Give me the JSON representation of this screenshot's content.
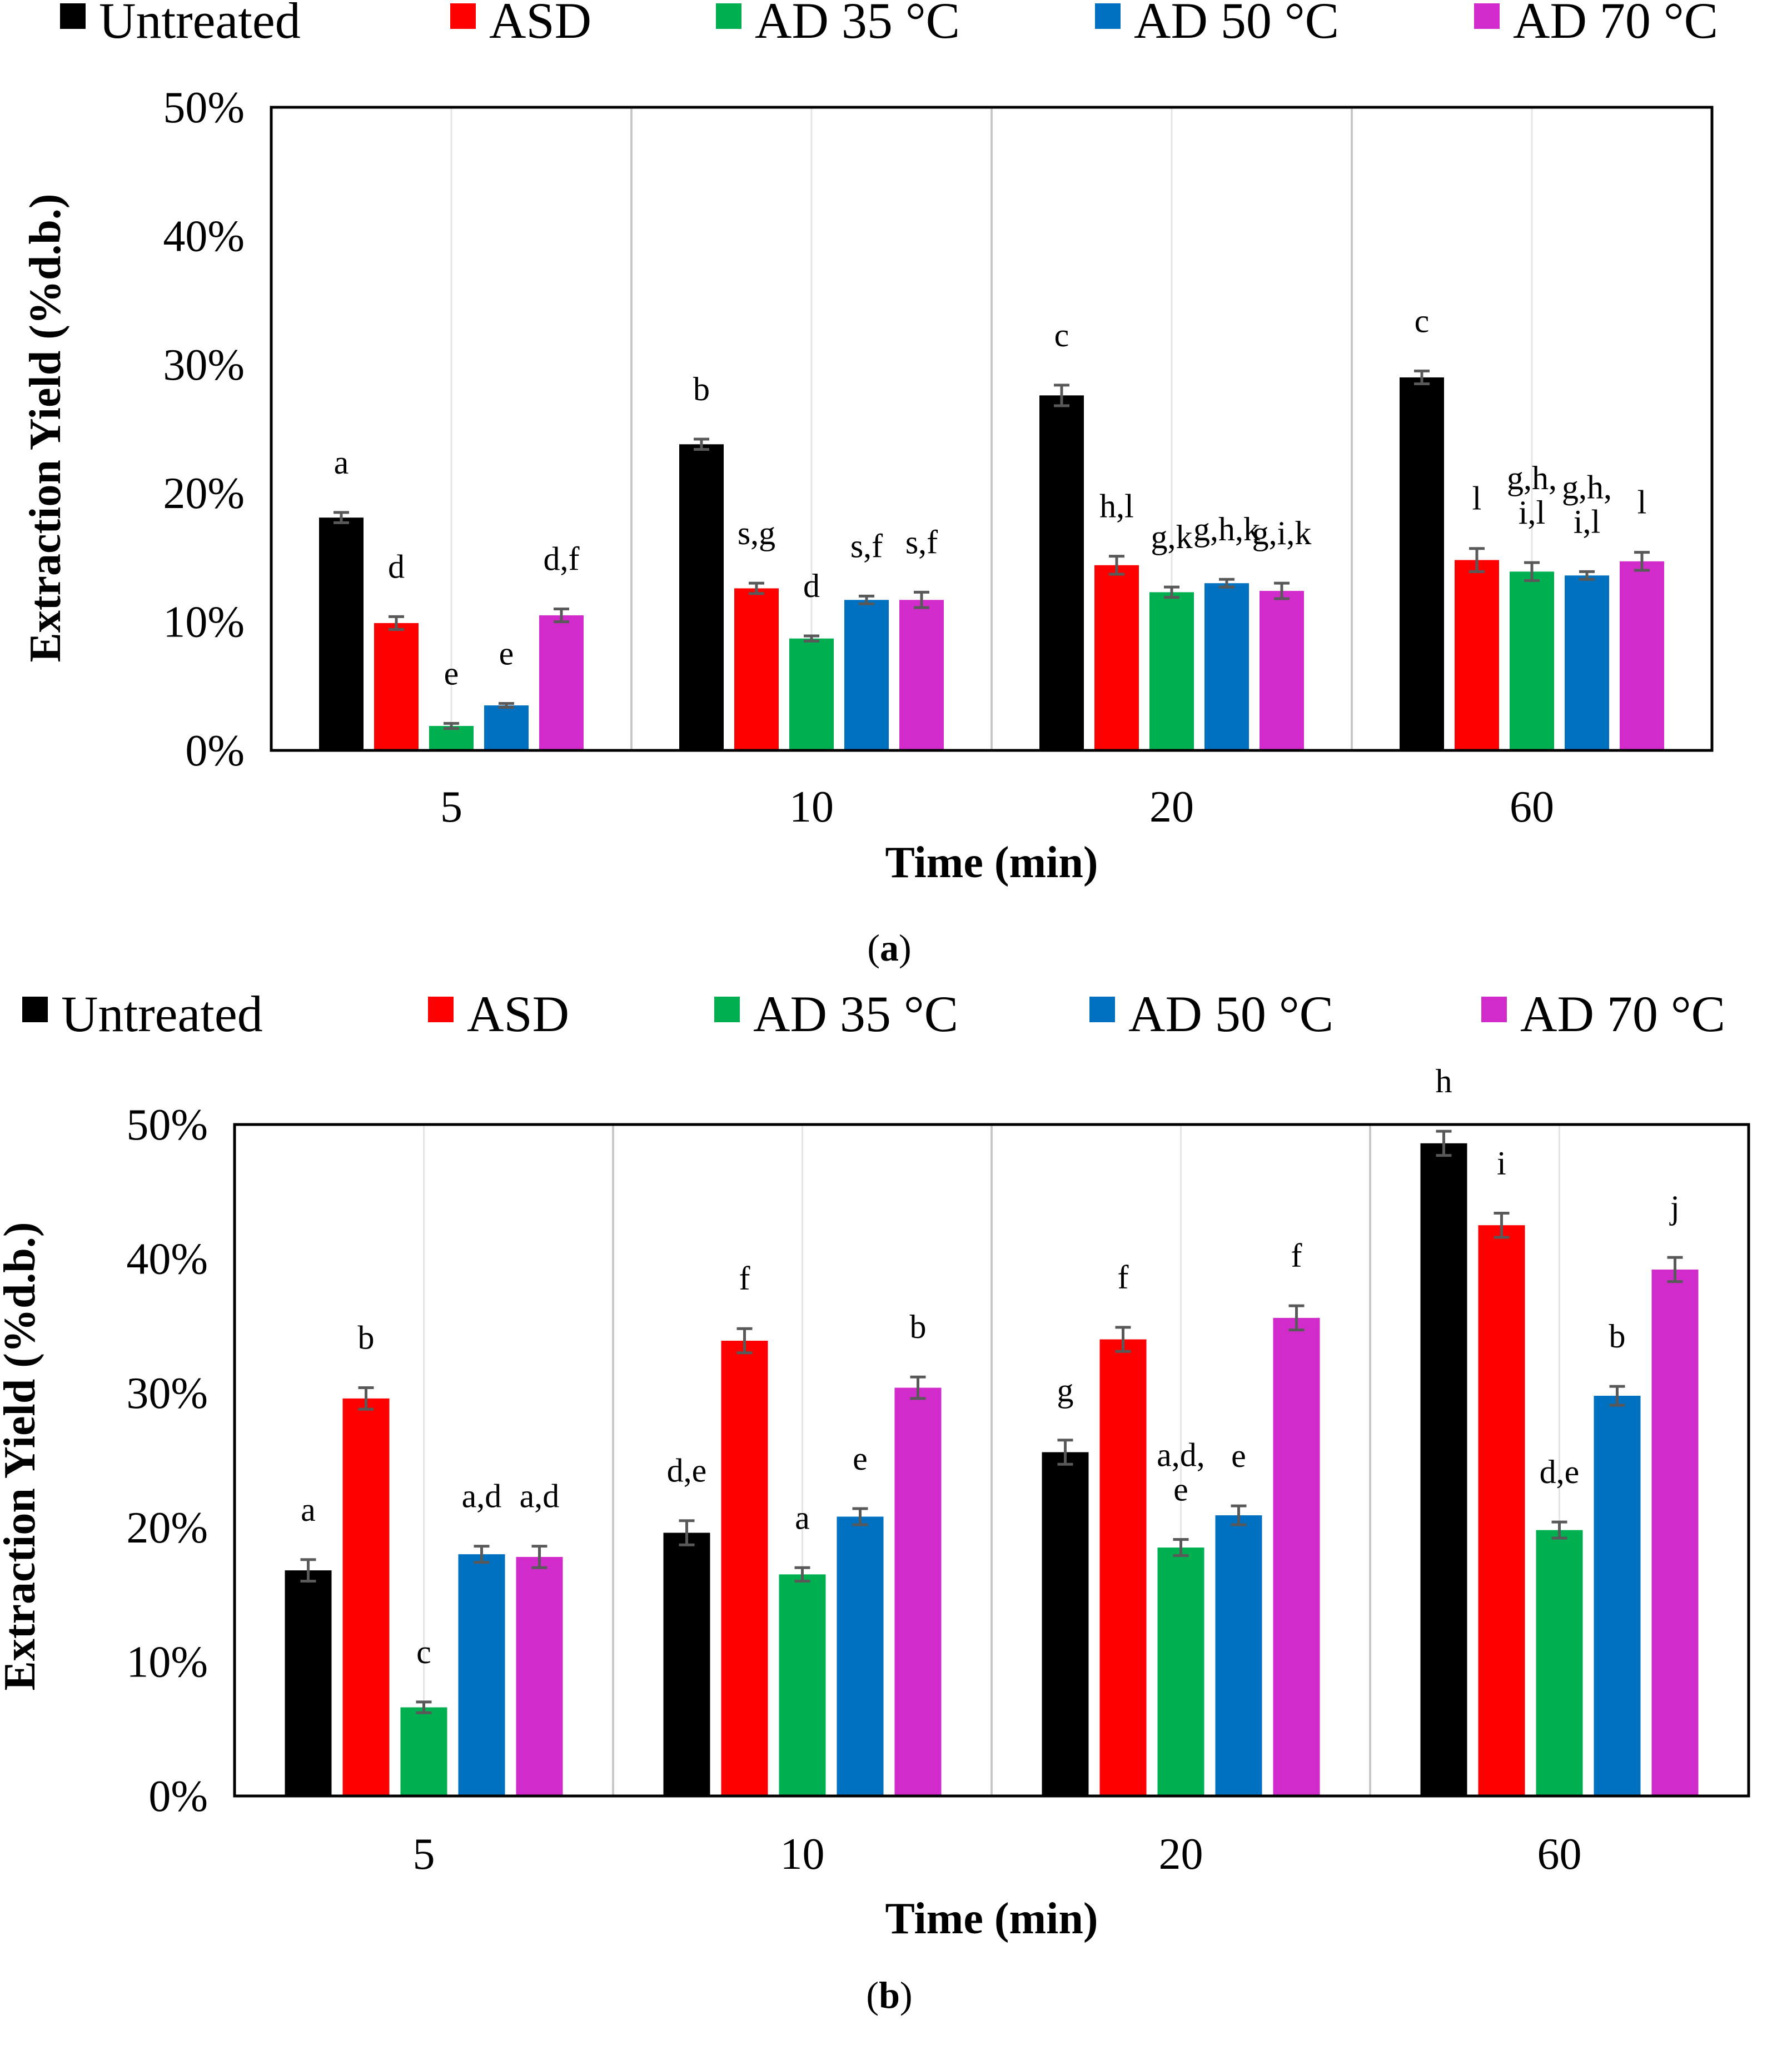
{
  "series_names": [
    "Untreated",
    "ASD",
    "AD 35 °C",
    "AD 50 °C",
    "AD 70 °C"
  ],
  "colors": [
    "#000000",
    "#ff0000",
    "#00b050",
    "#0070c0",
    "#d22bcb"
  ],
  "error_bar_color": "#595959",
  "chart_data": [
    {
      "type": "bar",
      "panel_label": "a",
      "xlabel": "Time (min)",
      "ylabel": "Extraction Yield (%d.b.)",
      "categories": [
        "5",
        "10",
        "20",
        "60"
      ],
      "y_tick_labels": [
        "0%",
        "10%",
        "20%",
        "30%",
        "40%",
        "50%"
      ],
      "ylim": [
        0,
        50
      ],
      "grid": "vertical",
      "legend": "top",
      "series": [
        {
          "name": "Untreated",
          "values": [
            18.1,
            23.8,
            27.6,
            29.0
          ],
          "errors": [
            0.4,
            0.4,
            0.8,
            0.5
          ],
          "labels": [
            "a",
            "b",
            "c",
            "c"
          ]
        },
        {
          "name": "ASD",
          "values": [
            9.9,
            12.6,
            14.4,
            14.8
          ],
          "errors": [
            0.5,
            0.4,
            0.7,
            0.9
          ],
          "labels": [
            "d",
            "s,g",
            "h,l",
            "l"
          ]
        },
        {
          "name": "AD 35 °C",
          "values": [
            1.9,
            8.7,
            12.3,
            13.9
          ],
          "errors": [
            0.2,
            0.2,
            0.4,
            0.7
          ],
          "labels": [
            "e",
            "d",
            "g,k",
            "g,h,|i,l"
          ]
        },
        {
          "name": "AD 50 °C",
          "values": [
            3.5,
            11.7,
            13.0,
            13.6
          ],
          "errors": [
            0.15,
            0.3,
            0.3,
            0.3
          ],
          "labels": [
            "e",
            "s,f",
            "g,h,k",
            "g,h,|i,l"
          ]
        },
        {
          "name": "AD 70 °C",
          "values": [
            10.5,
            11.7,
            12.4,
            14.7
          ],
          "errors": [
            0.5,
            0.6,
            0.6,
            0.7
          ],
          "labels": [
            "d,f",
            "s,f",
            "g,i,k",
            "l"
          ]
        }
      ]
    },
    {
      "type": "bar",
      "panel_label": "b",
      "xlabel": "Time (min)",
      "ylabel": "Extraction Yield (%d.b.)",
      "categories": [
        "5",
        "10",
        "20",
        "60"
      ],
      "y_tick_labels": [
        "0%",
        "10%",
        "20%",
        "30%",
        "40%",
        "50%"
      ],
      "ylim": [
        0,
        50
      ],
      "grid": "vertical",
      "legend": "top",
      "series": [
        {
          "name": "Untreated",
          "values": [
            16.8,
            19.6,
            25.6,
            48.6
          ],
          "errors": [
            0.8,
            0.9,
            0.9,
            0.9
          ],
          "labels": [
            "a",
            "d,e",
            "g",
            "h"
          ]
        },
        {
          "name": "ASD",
          "values": [
            29.6,
            33.9,
            34.0,
            42.5
          ],
          "errors": [
            0.8,
            0.9,
            0.9,
            0.9
          ],
          "labels": [
            "b",
            "f",
            "f",
            "i"
          ]
        },
        {
          "name": "AD 35 °C",
          "values": [
            6.6,
            16.5,
            18.5,
            19.8
          ],
          "errors": [
            0.4,
            0.5,
            0.6,
            0.6
          ],
          "labels": [
            "c",
            "a",
            "a,d,|e",
            "d,e"
          ]
        },
        {
          "name": "AD 50 °C",
          "values": [
            18.0,
            20.8,
            20.9,
            29.8
          ],
          "errors": [
            0.6,
            0.6,
            0.7,
            0.7
          ],
          "labels": [
            "a,d",
            "e",
            "e",
            "b"
          ]
        },
        {
          "name": "AD 70 °C",
          "values": [
            17.8,
            30.4,
            35.6,
            39.2
          ],
          "errors": [
            0.8,
            0.8,
            0.9,
            0.9
          ],
          "labels": [
            "a,d",
            "b",
            "f",
            "j"
          ]
        }
      ]
    }
  ]
}
